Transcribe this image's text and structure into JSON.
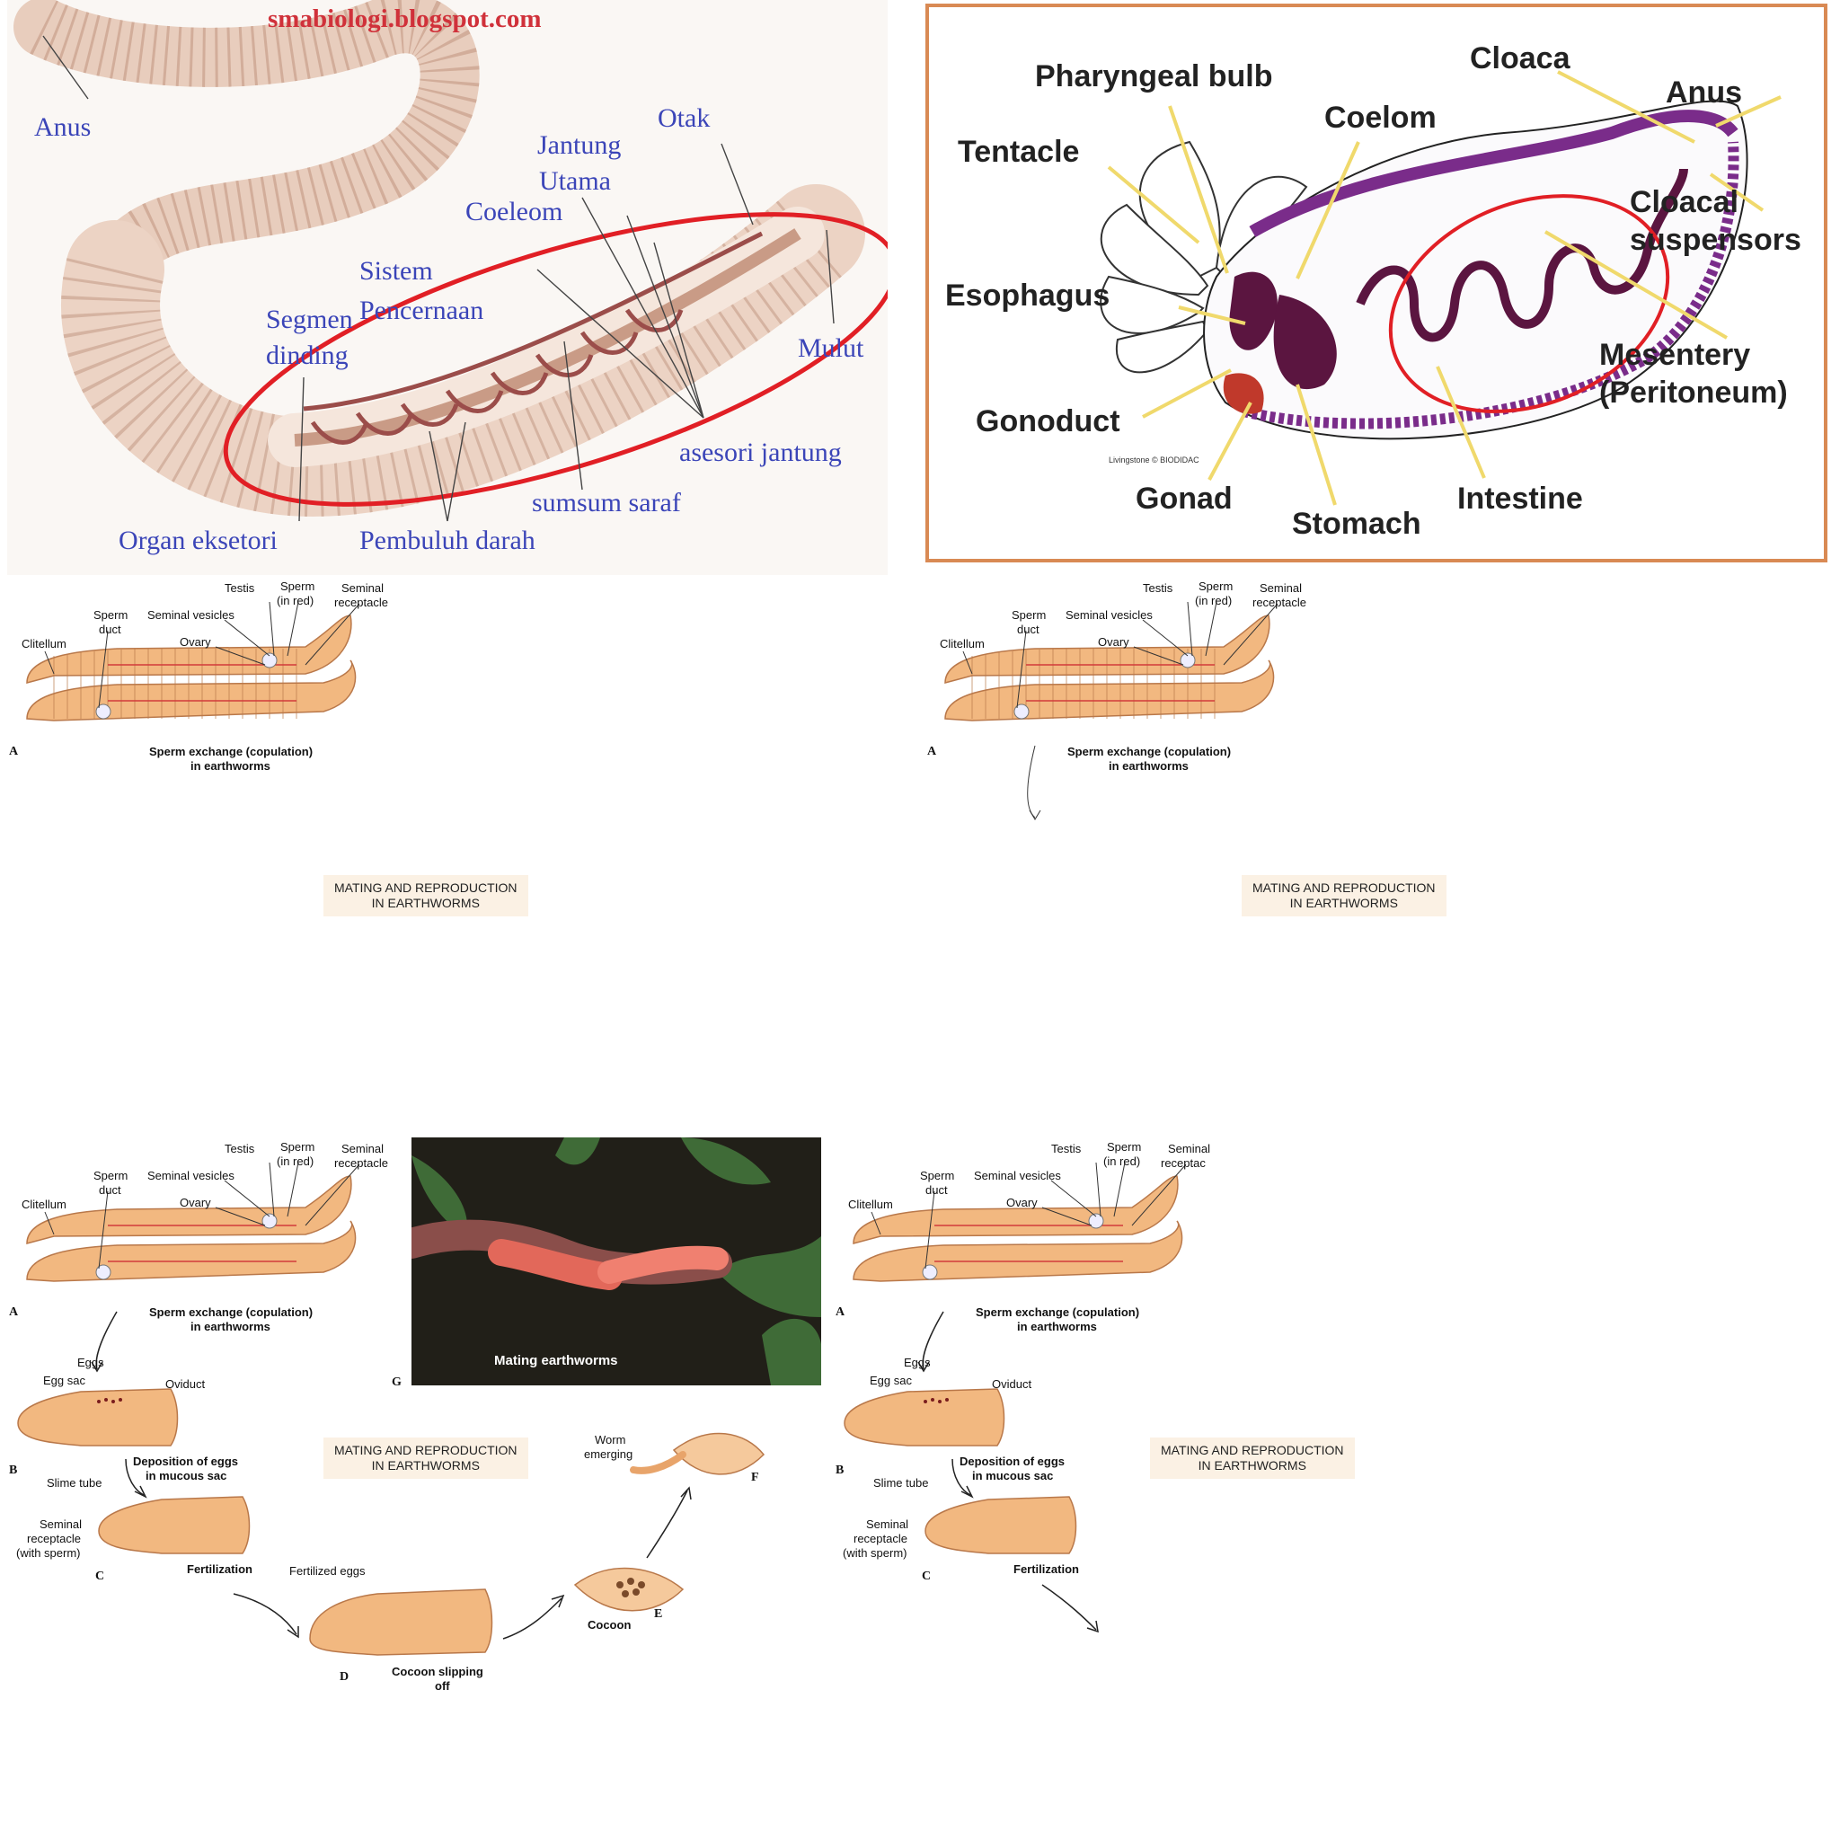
{
  "worm_anatomy": {
    "watermark": "smabiologi.blogspot.com",
    "labels": {
      "anus": "Anus",
      "otak": "Otak",
      "jantung": "Jantung",
      "utama": "Utama",
      "coeleom": "Coeleom",
      "sistem": "Sistem",
      "pencernaan": "Pencernaan",
      "segmen": "Segmen",
      "dinding": "dinding",
      "mulut": "Mulut",
      "asesori": "asesori jantung",
      "sumsum": "sumsum saraf",
      "organ": "Organ eksetori",
      "pembuluh": "Pembuluh darah"
    }
  },
  "sea_cucumber": {
    "credit": "Livingstone © BIODIDAC",
    "labels": {
      "pharyngeal": "Pharyngeal bulb",
      "cloaca": "Cloaca",
      "anus": "Anus",
      "tentacle": "Tentacle",
      "coelom": "Coelom",
      "cloacal1": "Cloacal",
      "cloacal2": "suspensors",
      "esophagus": "Esophagus",
      "mesentery1": "Mesentery",
      "mesentery2": "(Peritoneum)",
      "gonoduct": "Gonoduct",
      "gonad": "Gonad",
      "stomach": "Stomach",
      "intestine": "Intestine"
    }
  },
  "reproduction": {
    "testis": "Testis",
    "sperm": "Sperm",
    "in_red": "(in red)",
    "seminal": "Seminal",
    "receptacle": "receptacle",
    "receptacle_cut": "receptac",
    "sperm_duct1": "Sperm",
    "sperm_duct2": "duct",
    "seminal_vesicles": "Seminal vesicles",
    "clitellum": "Clitellum",
    "ovary": "Ovary",
    "letter_a": "A",
    "letter_b": "B",
    "letter_c": "C",
    "letter_d": "D",
    "letter_e": "E",
    "letter_f": "F",
    "letter_g": "G",
    "caption_a1": "Sperm exchange (copulation)",
    "caption_a2": "in earthworms",
    "title1": "MATING AND REPRODUCTION",
    "title2": "IN EARTHWORMS",
    "eggs": "Eggs",
    "egg_sac": "Egg sac",
    "oviduct": "Oviduct",
    "deposition1": "Deposition of eggs",
    "deposition2": "in mucous sac",
    "slime_tube": "Slime tube",
    "sem_rec1": "Seminal",
    "sem_rec2": "receptacle",
    "sem_rec3": "(with sperm)",
    "fertilization": "Fertilization",
    "fertilized_eggs": "Fertilized eggs",
    "cocoon_slip1": "Cocoon slipping",
    "cocoon_slip2": "off",
    "cocoon": "Cocoon",
    "worm1": "Worm",
    "worm2": "emerging",
    "mating_photo": "Mating earthworms"
  }
}
